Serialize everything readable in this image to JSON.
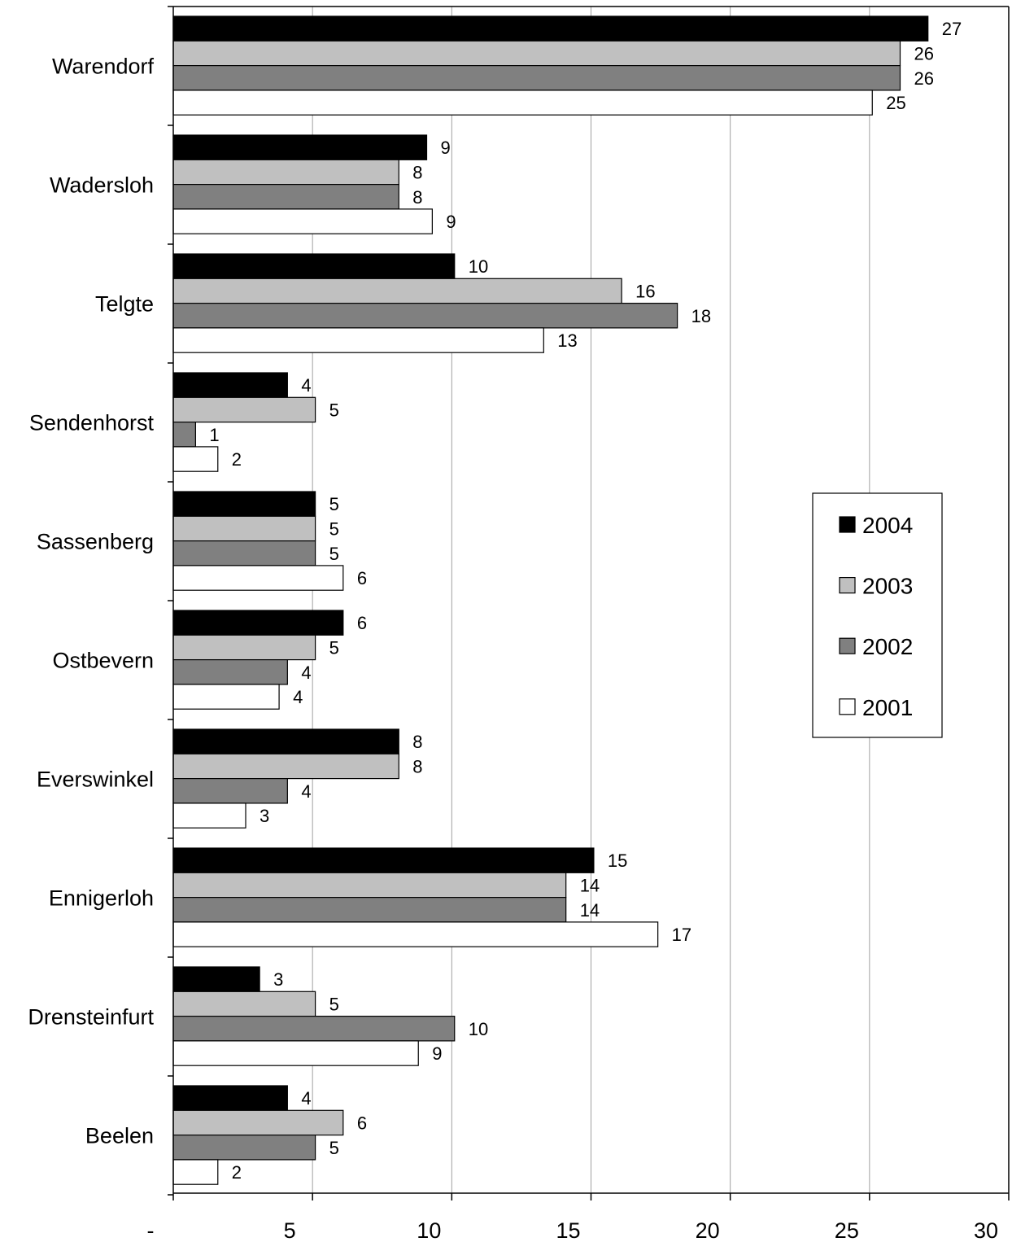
{
  "chart_data": {
    "type": "bar",
    "orientation": "horizontal",
    "categories": [
      "Warendorf",
      "Wadersloh",
      "Telgte",
      "Sendenhorst",
      "Sassenberg",
      "Ostbevern",
      "Everswinkel",
      "Ennigerloh",
      "Drensteinfurt",
      "Beelen"
    ],
    "series": [
      {
        "name": "2004",
        "color": "#000000",
        "values": [
          27.1,
          9.1,
          10.1,
          4.1,
          5.1,
          6.1,
          8.1,
          15.1,
          3.1,
          4.1
        ],
        "labels": [
          "27",
          "9",
          "10",
          "4",
          "5",
          "6",
          "8",
          "15",
          "3",
          "4"
        ]
      },
      {
        "name": "2003",
        "color": "#c0c0c0",
        "values": [
          26.1,
          8.1,
          16.1,
          5.1,
          5.1,
          5.1,
          8.1,
          14.1,
          5.1,
          6.1
        ],
        "labels": [
          "26",
          "8",
          "16",
          "5",
          "5",
          "5",
          "8",
          "14",
          "5",
          "6"
        ]
      },
      {
        "name": "2002",
        "color": "#808080",
        "values": [
          26.1,
          8.1,
          18.1,
          0.8,
          5.1,
          4.1,
          4.1,
          14.1,
          10.1,
          5.1
        ],
        "labels": [
          "26",
          "8",
          "18",
          "1",
          "5",
          "4",
          "4",
          "14",
          "10",
          "5"
        ]
      },
      {
        "name": "2001",
        "color": "#ffffff",
        "values": [
          25.1,
          9.3,
          13.3,
          1.6,
          6.1,
          3.8,
          2.6,
          17.4,
          8.8,
          1.6
        ],
        "labels": [
          "25",
          "9",
          "13",
          "2",
          "6",
          "4",
          "3",
          "17",
          "9",
          "2"
        ]
      }
    ],
    "xlim": [
      0,
      30
    ],
    "xticks": [
      0,
      5,
      10,
      15,
      20,
      25,
      30
    ],
    "xtick_labels": [
      "-",
      "5",
      "10",
      "15",
      "20",
      "25",
      "30"
    ],
    "grid": true,
    "legend": {
      "position": "right",
      "order": [
        "2004",
        "2003",
        "2002",
        "2001"
      ]
    },
    "title": "",
    "xlabel": "",
    "ylabel": ""
  }
}
